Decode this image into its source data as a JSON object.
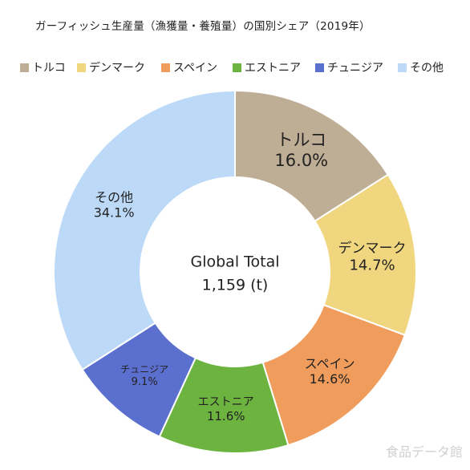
{
  "chart_data": {
    "type": "pie",
    "title": "ガーフィッシュ生産量（漁獲量・養殖量）の国別シェア（2019年）",
    "center_label": "Global Total",
    "center_value": "1,159 (t)",
    "categories": [
      "トルコ",
      "デンマーク",
      "スペイン",
      "エストニア",
      "チュニジア",
      "その他"
    ],
    "values": [
      16.0,
      14.7,
      14.6,
      11.6,
      9.1,
      34.1
    ],
    "value_labels": [
      "16.0%",
      "14.7%",
      "14.6%",
      "11.6%",
      "9.1%",
      "34.1%"
    ],
    "colors": [
      "#bfae96",
      "#f0d77f",
      "#f09c5c",
      "#6db33f",
      "#5b6fcf",
      "#bcd9f7"
    ],
    "legend_position": "top"
  },
  "watermark": "食品データ館"
}
